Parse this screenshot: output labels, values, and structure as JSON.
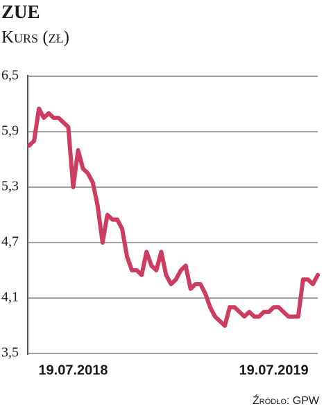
{
  "chart_data": {
    "type": "line",
    "title": "ZUE",
    "subtitle": "Kurs (zł)",
    "source": "Źródło: GPW",
    "categories": [
      null,
      null,
      null,
      null,
      null,
      null,
      null,
      null,
      null,
      "19.07.2018",
      null,
      null,
      null,
      null,
      null,
      null,
      null,
      null,
      null,
      null,
      null,
      null,
      null,
      null,
      null,
      null,
      null,
      null,
      null,
      null,
      null,
      null,
      null,
      null,
      null,
      null,
      null,
      null,
      null,
      null,
      null,
      null,
      null,
      null,
      null,
      null,
      null,
      null,
      null,
      null,
      "19.07.2019",
      null,
      null,
      null,
      null,
      null,
      null,
      null,
      null,
      null
    ],
    "values": [
      5.75,
      5.8,
      6.15,
      6.05,
      6.1,
      6.05,
      6.05,
      6.0,
      5.95,
      5.3,
      5.7,
      5.5,
      5.45,
      5.35,
      5.1,
      4.7,
      5.0,
      4.95,
      4.95,
      4.85,
      4.55,
      4.4,
      4.4,
      4.35,
      4.6,
      4.45,
      4.4,
      4.6,
      4.35,
      4.25,
      4.3,
      4.4,
      4.45,
      4.2,
      4.25,
      4.25,
      4.15,
      4.0,
      3.9,
      3.85,
      3.8,
      4.0,
      4.0,
      3.95,
      3.9,
      3.95,
      3.9,
      3.9,
      3.95,
      3.95,
      4.0,
      4.0,
      3.95,
      3.9,
      3.9,
      3.9,
      4.3,
      4.3,
      4.25,
      4.35
    ],
    "color": "#cc3d5f",
    "ylim": [
      3.5,
      6.5
    ],
    "yticks": [
      {
        "value": 3.5,
        "label": "3,5"
      },
      {
        "value": 4.1,
        "label": "4,1"
      },
      {
        "value": 4.7,
        "label": "4,7"
      },
      {
        "value": 5.3,
        "label": "5,3"
      },
      {
        "value": 5.9,
        "label": "5,9"
      },
      {
        "value": 6.5,
        "label": "6,5"
      }
    ],
    "grid": true
  }
}
